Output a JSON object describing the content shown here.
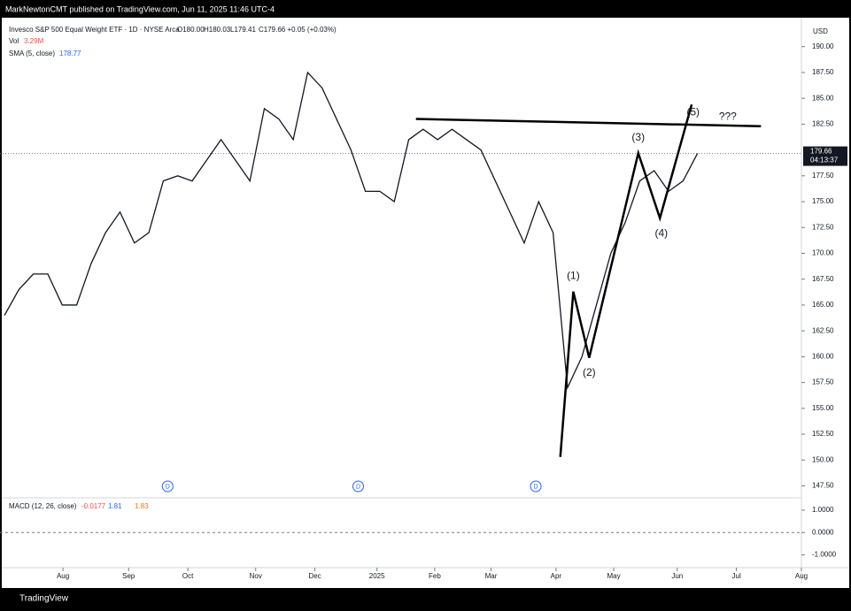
{
  "publish_note": "MarkNewtonCMT published on TradingView.com, Jun 11, 2025 11:46 UTC-4",
  "footer": "TradingView",
  "chart_data": {
    "type": "line",
    "title": "Invesco S&P 500 Equal Weight ETF · 1D · NYSE Arca",
    "ohlc": [
      "O180.00",
      "H180.03",
      "L179.41",
      "C179.66 +0.05 (+0.03%)"
    ],
    "volume_label": "Vol",
    "volume_value": "3.29M",
    "sma_label": "SMA (5, close)",
    "sma_value": 178.77,
    "currency": "USD",
    "last_price": 179.66,
    "last_price_label": "179.66",
    "countdown": "04:13:37",
    "x": [
      0,
      1,
      2,
      3,
      4,
      5,
      6,
      7,
      8,
      9,
      10,
      11,
      12,
      13,
      14,
      15,
      16,
      17,
      18,
      19,
      20,
      21,
      22,
      23,
      24,
      25,
      26,
      27,
      28,
      29,
      30,
      31,
      32,
      33,
      34,
      35,
      36,
      37,
      38,
      39,
      40,
      41,
      42,
      43,
      44,
      45,
      46,
      47,
      48
    ],
    "series": [
      {
        "name": "Close",
        "color": "#131722",
        "values": [
          164,
          166.5,
          168,
          168,
          165,
          165,
          169,
          172,
          174,
          171,
          172,
          177,
          177.5,
          177,
          179,
          181,
          179,
          177,
          184,
          183,
          181,
          187.5,
          186,
          183,
          180,
          176,
          176,
          175,
          181,
          182,
          181,
          182,
          181,
          180,
          177,
          174,
          171,
          175,
          172,
          157,
          160,
          165,
          170,
          173,
          177,
          178,
          176,
          177,
          179.66
        ]
      }
    ],
    "xlim": [
      -0.31,
      55.2
    ],
    "xticks": [
      {
        "value": 4.05,
        "label": "Aug"
      },
      {
        "value": 8.6,
        "label": "Sep"
      },
      {
        "value": 12.7,
        "label": "Oct"
      },
      {
        "value": 17.4,
        "label": "Nov"
      },
      {
        "value": 21.5,
        "label": "Dec"
      },
      {
        "value": 25.8,
        "label": "2025"
      },
      {
        "value": 29.8,
        "label": "Feb"
      },
      {
        "value": 33.7,
        "label": "Mar"
      },
      {
        "value": 38.2,
        "label": "Apr"
      },
      {
        "value": 42.2,
        "label": "May"
      },
      {
        "value": 46.6,
        "label": "Jun"
      },
      {
        "value": 50.7,
        "label": "Jul"
      },
      {
        "value": 55.2,
        "label": "Aug"
      }
    ],
    "ylim": [
      146.6,
      192.8
    ],
    "yticks": [
      {
        "value": 190,
        "label": "190.00"
      },
      {
        "value": 187.5,
        "label": "187.50"
      },
      {
        "value": 185,
        "label": "185.00"
      },
      {
        "value": 182.5,
        "label": "182.50"
      },
      {
        "value": 177.5,
        "label": "177.50"
      },
      {
        "value": 175,
        "label": "175.00"
      },
      {
        "value": 172.5,
        "label": "172.50"
      },
      {
        "value": 170,
        "label": "170.00"
      },
      {
        "value": 167.5,
        "label": "167.50"
      },
      {
        "value": 165,
        "label": "165.00"
      },
      {
        "value": 162.5,
        "label": "162.50"
      },
      {
        "value": 160,
        "label": "160.00"
      },
      {
        "value": 157.5,
        "label": "157.50"
      },
      {
        "value": 155,
        "label": "155.00"
      },
      {
        "value": 152.5,
        "label": "152.50"
      },
      {
        "value": 150,
        "label": "150.00"
      },
      {
        "value": 147.5,
        "label": "147.50"
      }
    ],
    "dividends": [
      {
        "label": "D",
        "x": 11.3
      },
      {
        "label": "D",
        "x": 24.5
      },
      {
        "label": "D",
        "x": 36.8
      }
    ],
    "wave": {
      "x": [
        38.5,
        39.4,
        40.5,
        43.9,
        45.4,
        47.6
      ],
      "y": [
        150.3,
        166.3,
        159.9,
        179.7,
        173.4,
        184.4
      ]
    },
    "trendline": {
      "x": [
        28.5,
        52.4
      ],
      "y": [
        183.0,
        182.3
      ]
    },
    "wave_labels": [
      {
        "text": "(1)",
        "x": 39.4,
        "y": 167.8
      },
      {
        "text": "(2)",
        "x": 40.5,
        "y": 158.4
      },
      {
        "text": "(3)",
        "x": 43.9,
        "y": 181.2
      },
      {
        "text": "(4)",
        "x": 45.5,
        "y": 171.9
      },
      {
        "text": "(5)",
        "x": 47.7,
        "y": 183.6
      },
      {
        "text": "???",
        "x": 50.1,
        "y": 183.2
      }
    ],
    "macd": {
      "label": "MACD (12, 26, close)",
      "values": [
        "-0.0177",
        "1.81",
        "1.83"
      ],
      "ylim": [
        -1.49,
        1.55
      ],
      "yticks": [
        {
          "value": 1,
          "label": "1.0000"
        },
        {
          "value": 0,
          "label": "0.0000"
        },
        {
          "value": -1,
          "label": "-1.0000"
        }
      ]
    }
  }
}
